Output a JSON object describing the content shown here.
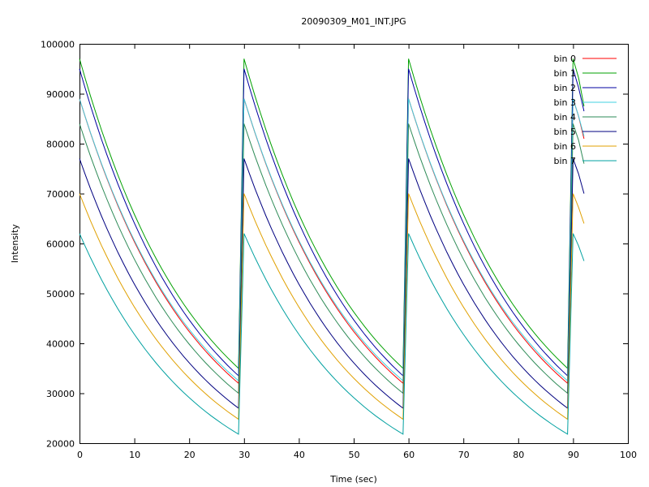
{
  "chart_data": {
    "type": "line",
    "title": "20090309_M01_INT.JPG",
    "xlabel": "Time (sec)",
    "ylabel": "Intensity",
    "xlim": [
      0,
      100
    ],
    "ylim": [
      20000,
      100000
    ],
    "xticks": [
      "0",
      "10",
      "20",
      "30",
      "40",
      "50",
      "60",
      "70",
      "80",
      "90",
      "100"
    ],
    "yticks": [
      "20000",
      "30000",
      "40000",
      "50000",
      "60000",
      "70000",
      "80000",
      "90000",
      "100000"
    ],
    "grid": false,
    "legend_position": "top-right",
    "x": [
      0,
      1,
      2,
      3,
      4,
      5,
      6,
      7,
      8,
      9,
      10,
      11,
      12,
      13,
      14,
      15,
      16,
      17,
      18,
      19,
      20,
      21,
      22,
      23,
      24,
      25,
      26,
      27,
      28,
      29,
      30,
      31,
      32,
      33,
      34,
      35,
      36,
      37,
      38,
      39,
      40,
      41,
      42,
      43,
      44,
      45,
      46,
      47,
      48,
      49,
      50,
      51,
      52,
      53,
      54,
      55,
      56,
      57,
      58,
      59,
      60,
      61,
      62,
      63,
      64,
      65,
      66,
      67,
      68,
      69,
      70,
      71,
      72,
      73,
      74,
      75,
      76,
      77,
      78,
      79,
      80,
      81,
      82,
      83,
      84,
      85,
      86,
      87,
      88,
      89,
      90,
      91,
      92
    ],
    "series": [
      {
        "name": "bin 0",
        "color": "#ff0000",
        "start": 89000,
        "end": 32000,
        "last": 81000
      },
      {
        "name": "bin 1",
        "color": "#00a000",
        "start": 97000,
        "end": 35000,
        "last": 87500
      },
      {
        "name": "bin 2",
        "color": "#0000a0",
        "start": 95000,
        "end": 33500,
        "last": 86500
      },
      {
        "name": "bin 3",
        "color": "#40d0e0",
        "start": 89000,
        "end": 32500,
        "last": 81500
      },
      {
        "name": "bin 4",
        "color": "#2e8b57",
        "start": 84000,
        "end": 30000,
        "last": 76000
      },
      {
        "name": "bin 5",
        "color": "#000080",
        "start": 77000,
        "end": 27000,
        "last": 70000
      },
      {
        "name": "bin 6",
        "color": "#e0a000",
        "start": 70000,
        "end": 24800,
        "last": 64000
      },
      {
        "name": "bin 7",
        "color": "#00a0a0",
        "start": 62000,
        "end": 21800,
        "last": 56500
      }
    ]
  }
}
